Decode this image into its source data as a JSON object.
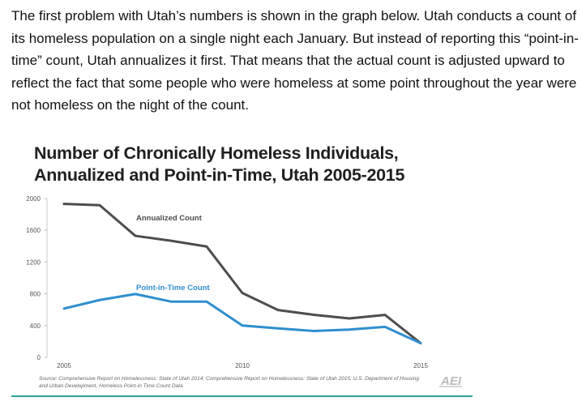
{
  "article": {
    "paragraph": "The first problem with Utah’s numbers is shown in the graph below. Utah conducts a count of its homeless population on a single night each January. But instead of reporting this “point-in-time” count, Utah annualizes it first. That means that the actual count is adjusted upward to reflect the fact that some people who were homeless at some point throughout the year were not homeless on the night of the count."
  },
  "chart_data": {
    "type": "line",
    "title_line1": "Number of Chronically Homeless Individuals,",
    "title_line2": "Annualized and Point-in-Time, Utah 2005-2015",
    "x": [
      2005,
      2006,
      2007,
      2008,
      2009,
      2010,
      2011,
      2012,
      2013,
      2014,
      2015
    ],
    "xticks": [
      "2005",
      "2010",
      "2015"
    ],
    "yticks": [
      "0",
      "400",
      "800",
      "1200",
      "1600",
      "2000"
    ],
    "ylim": [
      0,
      2000
    ],
    "xlim": [
      2005,
      2015
    ],
    "series": [
      {
        "name": "Annualized Count",
        "color": "#4d4d4d",
        "values": [
          1932,
          1916,
          1530,
          1468,
          1395,
          810,
          596,
          536,
          490,
          535,
          178
        ]
      },
      {
        "name": "Point-in-Time Count",
        "color": "#2e8fcf",
        "values": [
          614,
          722,
          797,
          702,
          702,
          400,
          365,
          332,
          350,
          384,
          178
        ]
      }
    ],
    "source": "Source: Comprehensive Report on Homelessness: State of Utah 2014; Comprehensive Report on Homelessness: State of Utah 2015; U.S. Department of Housing and Urban Development, Homeless Point-in Time Count Data",
    "logo_text": "AEI"
  },
  "colors": {
    "accent_rule": "#2aa39a",
    "annualized": "#4d4d4d",
    "point_in_time": "#2e8fcf"
  }
}
